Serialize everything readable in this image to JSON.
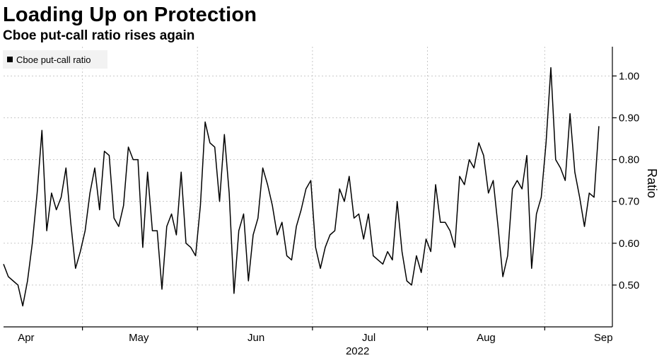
{
  "title": "Loading Up on Protection",
  "subtitle": "Cboe put-call ratio rises again",
  "chart_data": {
    "type": "line",
    "title": "Loading Up on Protection",
    "subtitle": "Cboe put-call ratio rises again",
    "ylabel": "Ratio",
    "xlabel": "2022",
    "ylim": [
      0.4,
      1.07
    ],
    "y_ticks": [
      0.5,
      0.6,
      0.7,
      0.8,
      0.9,
      1.0
    ],
    "y_tick_labels": [
      "0.50",
      "0.60",
      "0.70",
      "0.80",
      "0.90",
      "1.00"
    ],
    "x_year": "2022",
    "x_month_labels": [
      "Apr",
      "May",
      "Jun",
      "Jul",
      "Aug",
      "Sep"
    ],
    "x_range_days": [
      0,
      135
    ],
    "x_month_positions_days": [
      5,
      30,
      56,
      81,
      107,
      133
    ],
    "legend": {
      "placement": "top-left",
      "entries": [
        "Cboe put-call ratio"
      ]
    },
    "grid": true,
    "line_color": "#000000",
    "series": [
      {
        "name": "Cboe put-call ratio",
        "values": [
          0.55,
          0.52,
          0.51,
          0.5,
          0.45,
          0.51,
          0.6,
          0.72,
          0.87,
          0.63,
          0.72,
          0.68,
          0.71,
          0.78,
          0.65,
          0.54,
          0.58,
          0.63,
          0.72,
          0.78,
          0.68,
          0.82,
          0.81,
          0.66,
          0.64,
          0.69,
          0.83,
          0.8,
          0.8,
          0.59,
          0.77,
          0.63,
          0.63,
          0.49,
          0.64,
          0.67,
          0.62,
          0.77,
          0.6,
          0.59,
          0.57,
          0.69,
          0.89,
          0.84,
          0.83,
          0.7,
          0.86,
          0.72,
          0.48,
          0.63,
          0.67,
          0.51,
          0.62,
          0.66,
          0.78,
          0.74,
          0.69,
          0.62,
          0.65,
          0.57,
          0.56,
          0.64,
          0.68,
          0.73,
          0.75,
          0.59,
          0.54,
          0.59,
          0.62,
          0.63,
          0.73,
          0.7,
          0.76,
          0.66,
          0.67,
          0.61,
          0.67,
          0.57,
          0.56,
          0.55,
          0.58,
          0.56,
          0.7,
          0.58,
          0.51,
          0.5,
          0.57,
          0.53,
          0.61,
          0.58,
          0.74,
          0.65,
          0.65,
          0.63,
          0.59,
          0.76,
          0.74,
          0.8,
          0.78,
          0.84,
          0.81,
          0.72,
          0.75,
          0.64,
          0.52,
          0.57,
          0.73,
          0.75,
          0.73,
          0.81,
          0.54,
          0.67,
          0.71,
          0.84,
          1.02,
          0.8,
          0.78,
          0.75,
          0.91,
          0.77,
          0.71,
          0.64,
          0.72,
          0.71,
          0.88
        ]
      }
    ]
  }
}
